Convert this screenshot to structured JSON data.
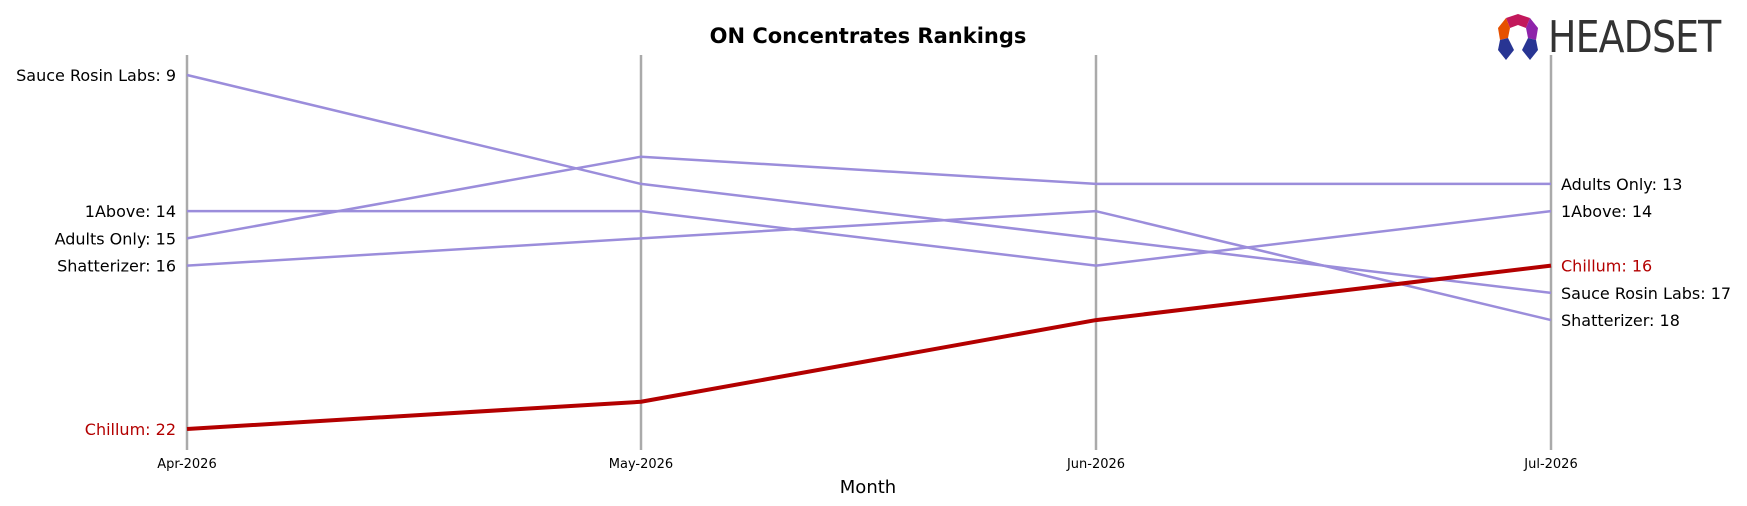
{
  "chart_data": {
    "type": "line",
    "title": "ON Concentrates Rankings",
    "xlabel": "Month",
    "ylabel": "",
    "x": [
      "Apr-2026",
      "May-2026",
      "Jun-2026",
      "Jul-2026"
    ],
    "y_inverted": true,
    "ylim": [
      8.3,
      22.7
    ],
    "grid": "vertical lines at each month",
    "series": [
      {
        "name": "Sauce Rosin Labs",
        "values": [
          9,
          13,
          15,
          17
        ],
        "color": "#9b8ddb",
        "highlight": false,
        "start_label": "Sauce Rosin Labs: 9",
        "end_label": "Sauce Rosin Labs: 17"
      },
      {
        "name": "1Above",
        "values": [
          14,
          14,
          16,
          14
        ],
        "color": "#9b8ddb",
        "highlight": false,
        "start_label": "1Above: 14",
        "end_label": "1Above: 14"
      },
      {
        "name": "Adults Only",
        "values": [
          15,
          12,
          13,
          13
        ],
        "color": "#9b8ddb",
        "highlight": false,
        "start_label": "Adults Only: 15",
        "end_label": "Adults Only: 13"
      },
      {
        "name": "Shatterizer",
        "values": [
          16,
          15,
          14,
          18
        ],
        "color": "#9b8ddb",
        "highlight": false,
        "start_label": "Shatterizer: 16",
        "end_label": "Shatterizer: 18"
      },
      {
        "name": "Chillum",
        "values": [
          22,
          21,
          18,
          16
        ],
        "color": "#b30000",
        "highlight": true,
        "start_label": "Chillum: 22",
        "end_label": "Chillum: 16"
      }
    ]
  },
  "brand": {
    "name": "HEADSET",
    "colors": [
      "#c2185b",
      "#e65100",
      "#283593",
      "#8e24aa"
    ]
  }
}
